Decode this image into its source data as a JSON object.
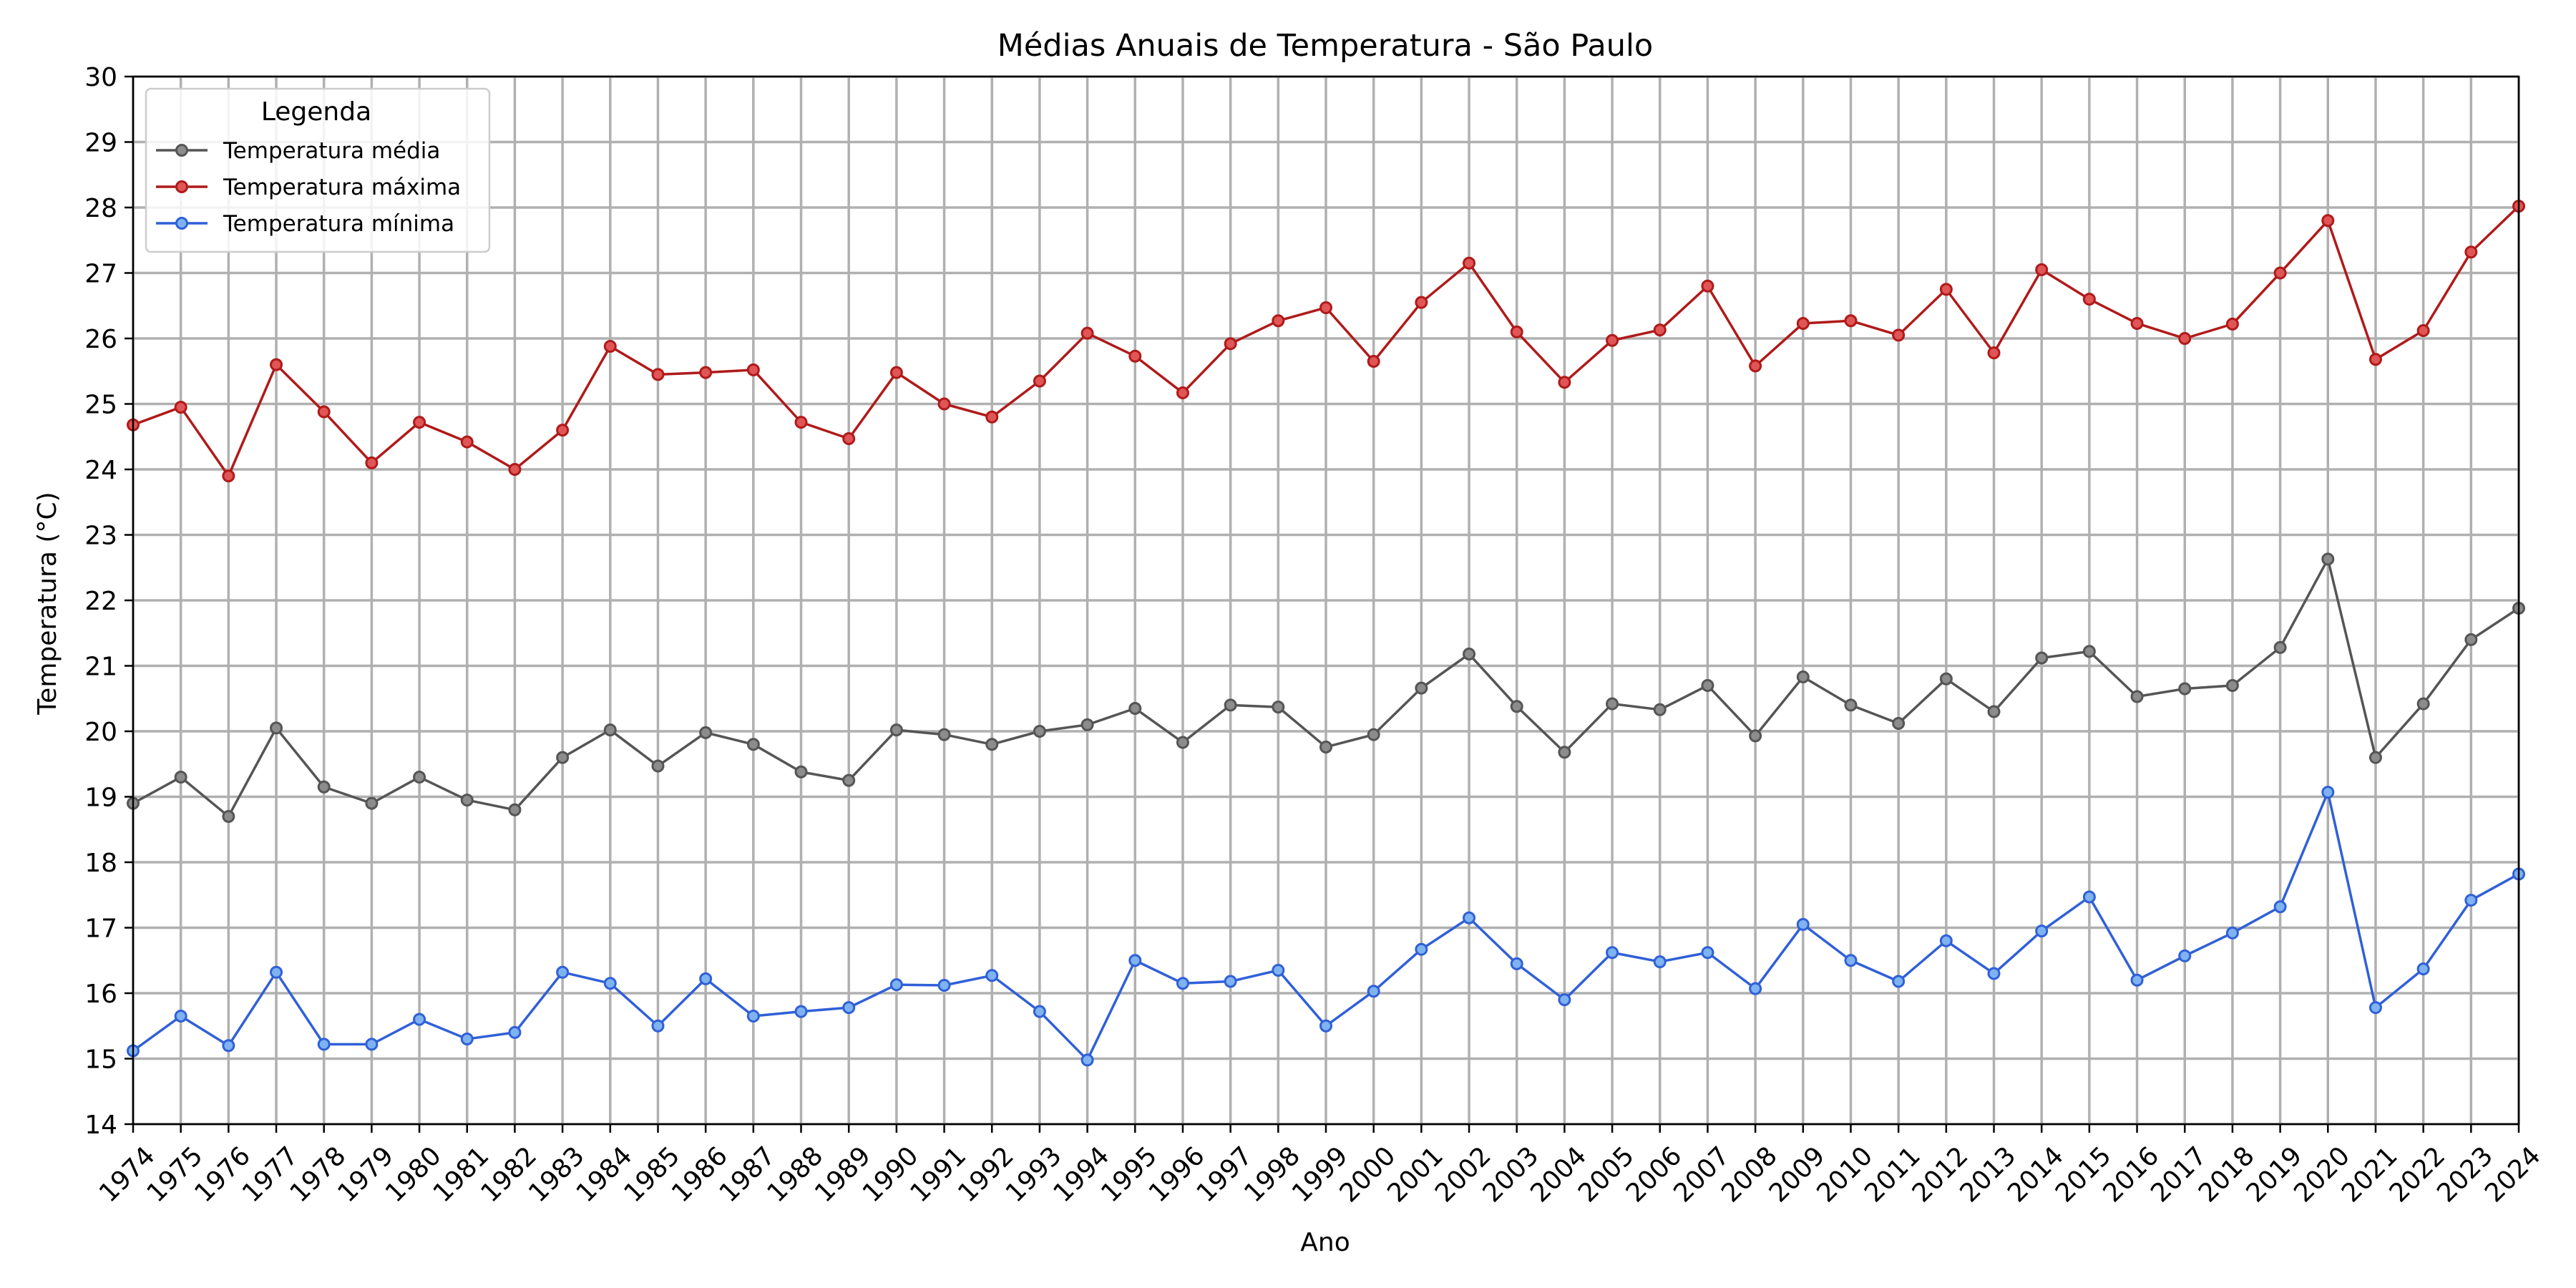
{
  "chart_data": {
    "type": "line",
    "title": "Médias Anuais de Temperatura - São Paulo",
    "xlabel": "Ano",
    "ylabel": "Temperatura (°C)",
    "x": [
      1974,
      1975,
      1976,
      1977,
      1978,
      1979,
      1980,
      1981,
      1982,
      1983,
      1984,
      1985,
      1986,
      1987,
      1988,
      1989,
      1990,
      1991,
      1992,
      1993,
      1994,
      1995,
      1996,
      1997,
      1998,
      1999,
      2000,
      2001,
      2002,
      2003,
      2004,
      2005,
      2006,
      2007,
      2008,
      2009,
      2010,
      2011,
      2012,
      2013,
      2014,
      2015,
      2016,
      2017,
      2018,
      2019,
      2020,
      2021,
      2022,
      2023,
      2024
    ],
    "xlim": [
      1974,
      2024
    ],
    "ylim": [
      14,
      30
    ],
    "yticks": [
      14,
      15,
      16,
      17,
      18,
      19,
      20,
      21,
      22,
      23,
      24,
      25,
      26,
      27,
      28,
      29,
      30
    ],
    "grid": true,
    "legend": {
      "title": "Legenda",
      "placement": "top-left"
    },
    "series": [
      {
        "name": "Temperatura média",
        "color": "#555555",
        "marker_fill": "#8c8c8c",
        "values": [
          18.9,
          19.3,
          18.7,
          20.05,
          19.15,
          18.9,
          19.3,
          18.95,
          18.8,
          19.6,
          20.02,
          19.47,
          19.98,
          19.8,
          19.38,
          19.25,
          20.02,
          19.95,
          19.8,
          20.0,
          20.1,
          20.35,
          19.83,
          20.4,
          20.37,
          19.76,
          19.95,
          20.66,
          21.18,
          20.38,
          19.68,
          20.42,
          20.33,
          20.7,
          19.93,
          20.83,
          20.4,
          20.12,
          20.8,
          20.3,
          21.12,
          21.22,
          20.53,
          20.65,
          20.7,
          21.28,
          22.63,
          19.6,
          20.42,
          21.4,
          21.88
        ]
      },
      {
        "name": "Temperatura máxima",
        "color": "#b01a1a",
        "marker_fill": "#e05555",
        "values": [
          24.68,
          24.95,
          23.9,
          25.6,
          24.88,
          24.1,
          24.72,
          24.42,
          24.0,
          24.6,
          25.88,
          25.45,
          25.48,
          25.52,
          24.72,
          24.47,
          25.48,
          25.0,
          24.8,
          25.35,
          26.08,
          25.73,
          25.17,
          25.92,
          26.27,
          26.47,
          25.65,
          26.55,
          27.15,
          26.1,
          25.33,
          25.97,
          26.13,
          26.8,
          25.58,
          26.23,
          26.27,
          26.05,
          26.75,
          25.78,
          27.05,
          26.6,
          26.23,
          26.0,
          26.22,
          27.0,
          27.8,
          25.68,
          26.12,
          27.32,
          28.02
        ]
      },
      {
        "name": "Temperatura mínima",
        "color": "#3060d8",
        "marker_fill": "#7fb3f0",
        "values": [
          15.12,
          15.65,
          15.2,
          16.32,
          15.22,
          15.22,
          15.6,
          15.3,
          15.4,
          16.32,
          16.15,
          15.5,
          16.22,
          15.65,
          15.72,
          15.78,
          16.13,
          16.12,
          16.27,
          15.72,
          14.98,
          16.5,
          16.15,
          16.18,
          16.35,
          15.5,
          16.03,
          16.67,
          17.15,
          16.45,
          15.9,
          16.62,
          16.48,
          16.62,
          16.07,
          17.05,
          16.5,
          16.18,
          16.8,
          16.3,
          16.95,
          17.47,
          16.2,
          16.57,
          16.92,
          17.32,
          19.07,
          15.78,
          16.37,
          17.42,
          17.82
        ]
      }
    ]
  }
}
